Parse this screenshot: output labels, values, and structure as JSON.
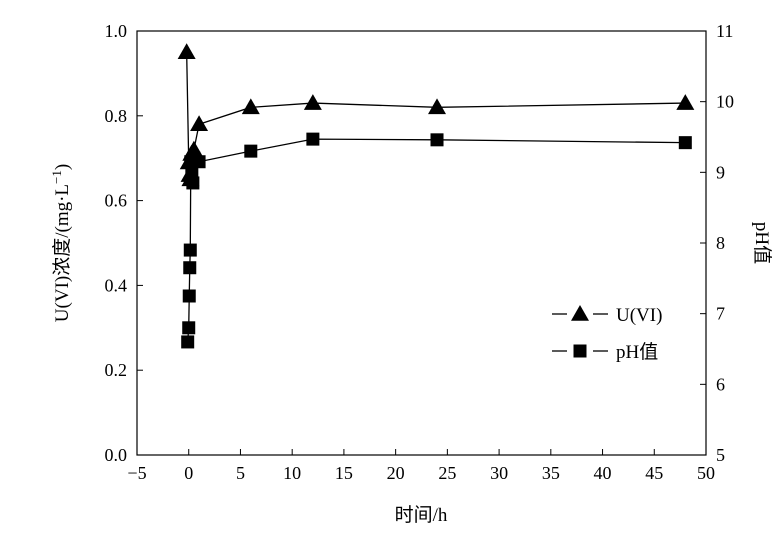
{
  "chart_data": {
    "type": "line",
    "xlabel": "时间/h",
    "ylabel": "U(VI)浓度/(mg·L⁻¹)",
    "ylabel_parts": {
      "main": "U(VI)浓度/(mg",
      "dot": "·",
      "unit": "L",
      "sup": "−1",
      "close": ")"
    },
    "y2label": "pH值",
    "xlim": [
      -5,
      50
    ],
    "ylim": [
      0.0,
      1.0
    ],
    "y2lim": [
      5,
      11
    ],
    "xticks": [
      -5,
      0,
      5,
      10,
      15,
      20,
      25,
      30,
      35,
      40,
      45,
      50
    ],
    "xtick_labels": [
      "−5",
      "0",
      "5",
      "10",
      "15",
      "20",
      "25",
      "30",
      "35",
      "40",
      "45",
      "50"
    ],
    "yticks": [
      0.0,
      0.2,
      0.4,
      0.6,
      0.8,
      1.0
    ],
    "ytick_labels": [
      "0.0",
      "0.2",
      "0.4",
      "0.6",
      "0.8",
      "1.0"
    ],
    "y2ticks": [
      5,
      6,
      7,
      8,
      9,
      10,
      11
    ],
    "y2tick_labels": [
      "5",
      "6",
      "7",
      "8",
      "9",
      "10",
      "11"
    ],
    "grid": false,
    "legend_position": "bottom-right",
    "series": [
      {
        "name": "U(VI)",
        "axis": "left",
        "marker": "triangle",
        "x": [
          -0.2,
          0,
          0.083,
          0.167,
          0.25,
          0.5,
          1,
          6,
          12,
          24,
          48
        ],
        "y": [
          0.95,
          0.69,
          0.66,
          0.65,
          0.71,
          0.72,
          0.78,
          0.82,
          0.83,
          0.82,
          0.83
        ]
      },
      {
        "name": "pH值",
        "axis": "right",
        "marker": "square",
        "x": [
          -0.1,
          0,
          0.05,
          0.1,
          0.15,
          0.2,
          0.3,
          0.4,
          0.5,
          1,
          6,
          12,
          24,
          48
        ],
        "y": [
          6.6,
          6.8,
          7.25,
          7.65,
          7.9,
          9.15,
          9.0,
          8.85,
          9.2,
          9.15,
          9.3,
          9.47,
          9.46,
          9.42
        ]
      }
    ]
  }
}
